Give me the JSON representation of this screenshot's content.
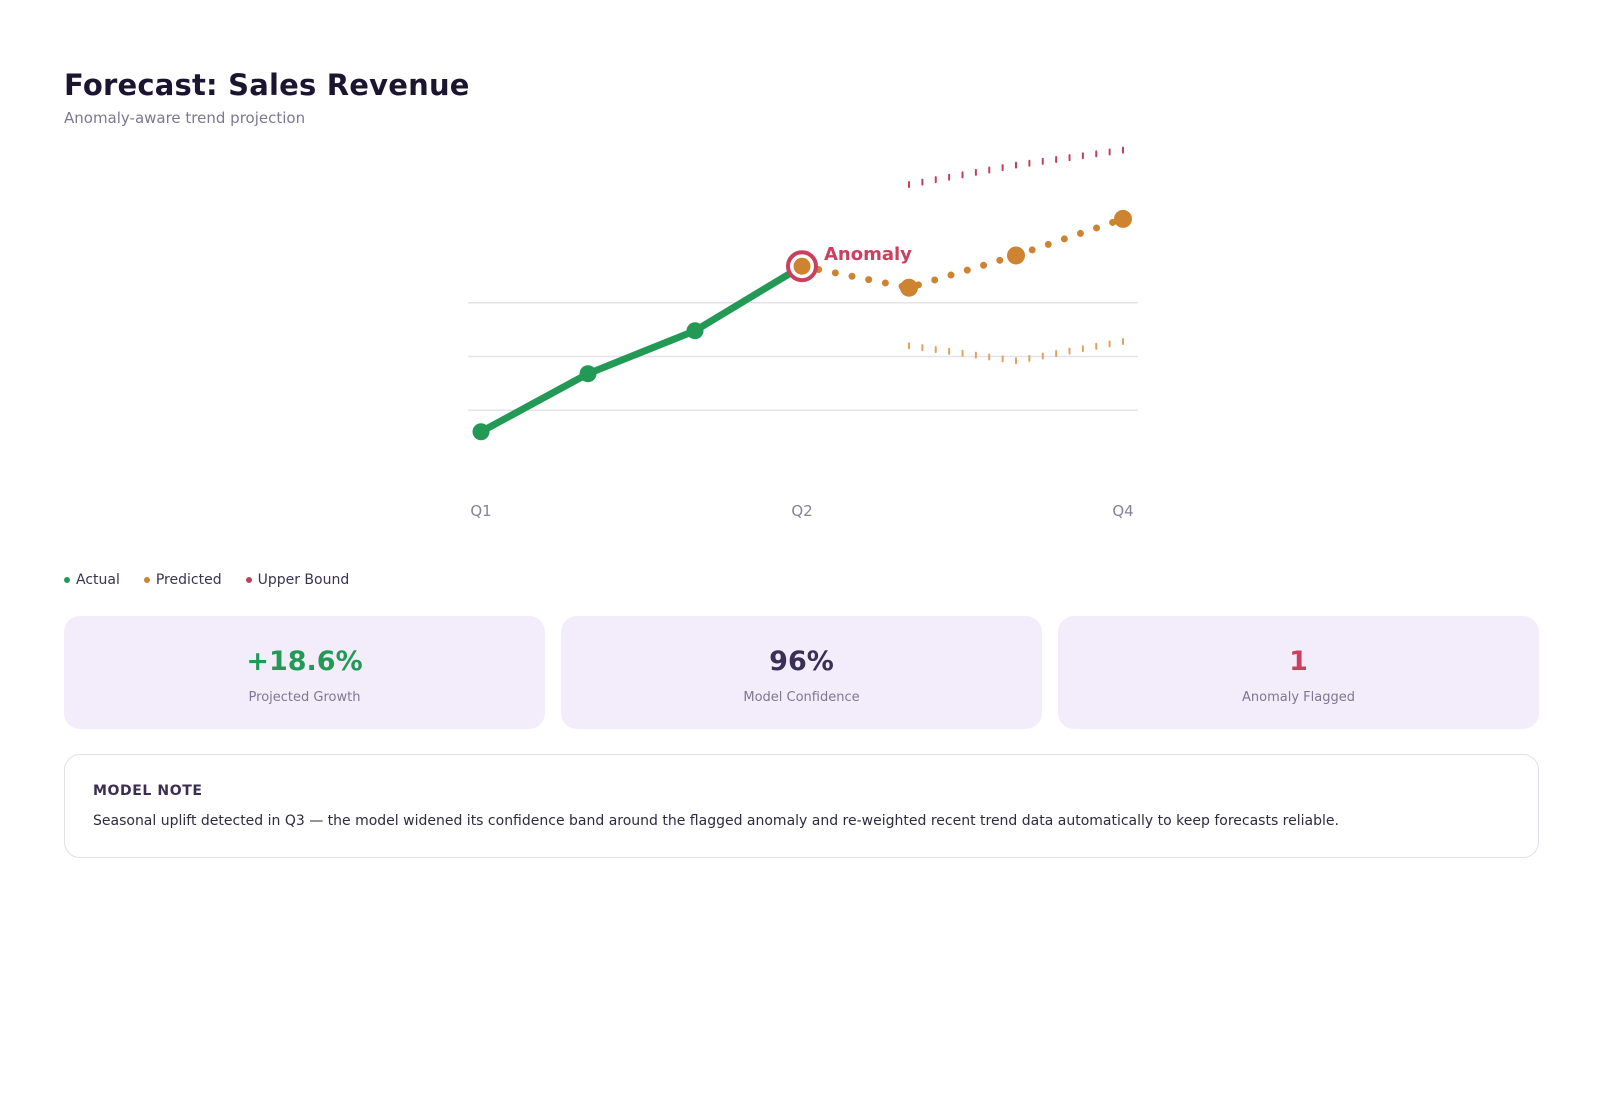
{
  "header": {
    "title": "Forecast: Sales Revenue",
    "subtitle": "Anomaly-aware trend projection"
  },
  "colors": {
    "actual": "#229955",
    "predicted": "#cd8330",
    "upper_bound": "#c2405a",
    "lower_bound": "#e0a25e",
    "anomaly": "#cc3f5f",
    "grid": "#e4e2ea",
    "axis_text": "#86829a",
    "card_bg": "#f3ecfa",
    "growth": "#229955",
    "confidence": "#3b2f55",
    "anomaly_count": "#cc3f5f"
  },
  "chart_data": {
    "type": "line",
    "x": [
      0,
      1,
      2,
      3,
      4,
      5,
      6
    ],
    "x_tick_labels": [
      {
        "at": 0,
        "label": "Q1"
      },
      {
        "at": 3,
        "label": "Q2"
      },
      {
        "at": 6,
        "label": "Q4"
      }
    ],
    "ylim": [
      0,
      100
    ],
    "grid": true,
    "legend_position": "bottom-left",
    "series": [
      {
        "key": "actual",
        "name": "Actual",
        "x": [
          0,
          1,
          2,
          3
        ],
        "values": [
          15,
          42,
          62,
          92
        ],
        "style": "solid"
      },
      {
        "key": "predicted",
        "name": "Predicted",
        "x": [
          3,
          4,
          5,
          6
        ],
        "values": [
          92,
          82,
          97,
          114
        ],
        "style": "dotted"
      },
      {
        "key": "upper",
        "name": "Upper Bound",
        "x": [
          4,
          5,
          6
        ],
        "values": [
          130,
          139,
          146
        ],
        "style": "ticks"
      },
      {
        "key": "lower",
        "name": "",
        "x": [
          4,
          5,
          6
        ],
        "values": [
          55,
          48,
          57
        ],
        "style": "ticks"
      }
    ],
    "annotations": [
      {
        "x": 3,
        "y": 92,
        "label": "Anomaly"
      }
    ]
  },
  "legend": [
    {
      "label": "Actual",
      "color": "#229955"
    },
    {
      "label": "Predicted",
      "color": "#cd8330"
    },
    {
      "label": "Upper Bound",
      "color": "#c2405a"
    }
  ],
  "metrics": [
    {
      "value": "+18.6%",
      "label": "Projected Growth",
      "color": "#229955"
    },
    {
      "value": "96%",
      "label": "Model Confidence",
      "color": "#3b2f55"
    },
    {
      "value": "1",
      "label": "Anomaly Flagged",
      "color": "#cc3f5f"
    }
  ],
  "note": {
    "title": "MODEL NOTE",
    "text": "Seasonal uplift detected in Q3 — the model widened its confidence band around the flagged anomaly and re-weighted recent trend data automatically to keep forecasts reliable."
  }
}
